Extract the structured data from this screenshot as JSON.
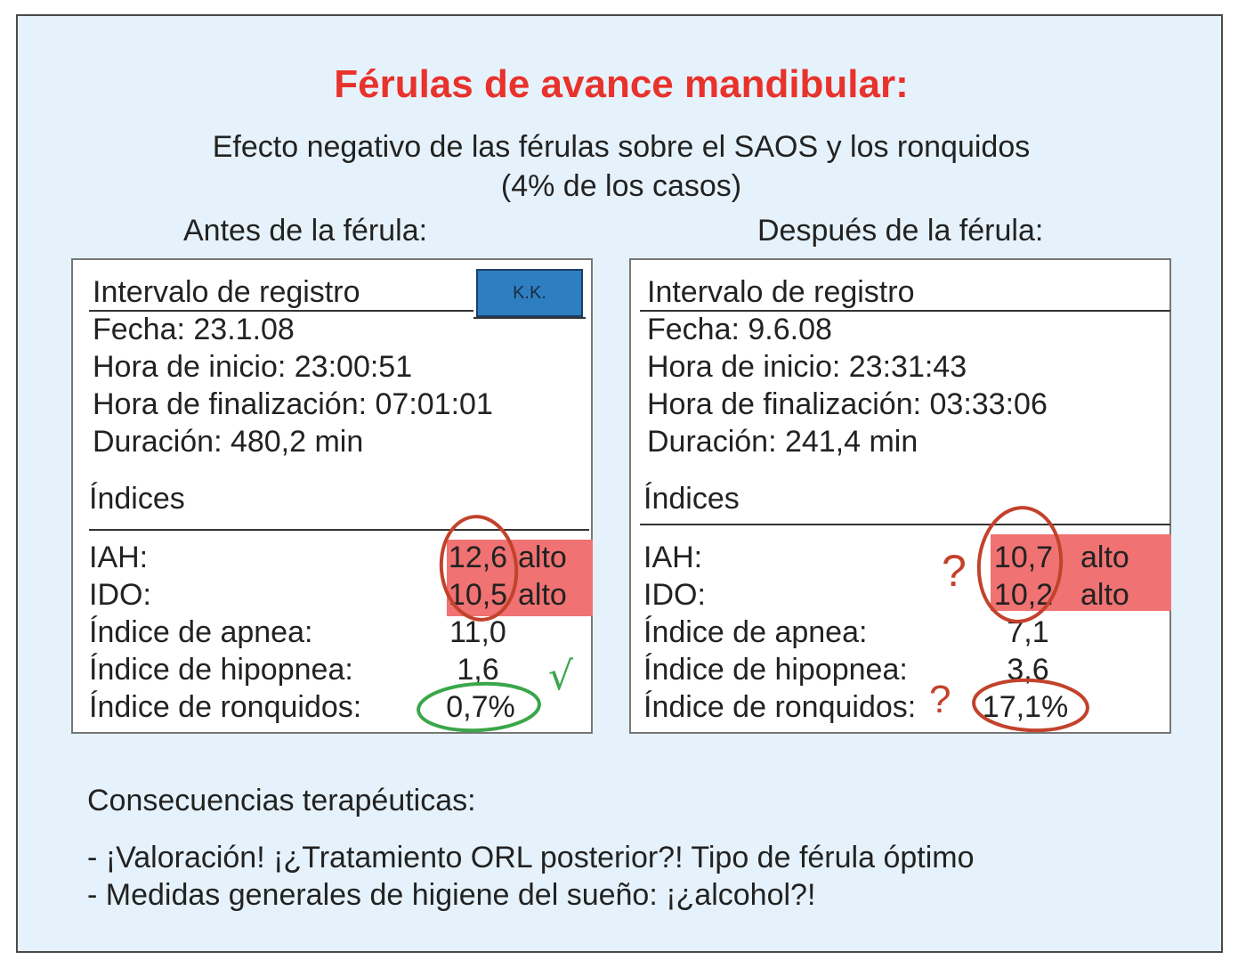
{
  "title": "Férulas de avance mandibular:",
  "subtitle": [
    "Efecto negativo de las férulas sobre el SAOS y los ronquidos",
    "(4% de los casos)"
  ],
  "headings": {
    "before": "Antes de la férula:",
    "after": "Después de la férula:"
  },
  "before": {
    "badge": "K.K.",
    "record_header": "Intervalo de registro",
    "fecha": "Fecha: 23.1.08",
    "inicio": "Hora de inicio: 23:00:51",
    "fin": "Hora de finalización: 07:01:01",
    "duracion": "Duración: 480,2 min",
    "indices_header": "Índices",
    "rows": [
      {
        "label": "IAH:",
        "value": "12,6",
        "flag": "alto"
      },
      {
        "label": "IDO:",
        "value": "10,5",
        "flag": "alto"
      },
      {
        "label": "Índice de apnea:",
        "value": "11,0",
        "flag": ""
      },
      {
        "label": "Índice de hipopnea:",
        "value": "1,6",
        "flag": ""
      },
      {
        "label": "Índice de ronquidos:",
        "value": "0,7%",
        "flag": ""
      }
    ]
  },
  "after": {
    "record_header": "Intervalo de registro",
    "fecha": "Fecha: 9.6.08",
    "inicio": "Hora de inicio: 23:31:43",
    "fin": "Hora de finalización: 03:33:06",
    "duracion": "Duración: 241,4 min",
    "indices_header": "Índices",
    "rows": [
      {
        "label": "IAH:",
        "value": "10,7",
        "flag": "alto"
      },
      {
        "label": "IDO:",
        "value": "10,2",
        "flag": "alto"
      },
      {
        "label": "Índice de apnea:",
        "value": "7,1",
        "flag": ""
      },
      {
        "label": "Índice de hipopnea:",
        "value": "3,6",
        "flag": ""
      },
      {
        "label": "Índice de ronquidos:",
        "value": "17,1%",
        "flag": ""
      }
    ]
  },
  "annotations": {
    "question_mark": "?",
    "check_mark": "√"
  },
  "consequences": {
    "header": "Consecuencias terapéuticas:",
    "items": [
      "- ¡Valoración! ¡¿Tratamiento ORL posterior?! Tipo de férula óptimo",
      "- Medidas generales de higiene del sueño: ¡¿alcohol?!"
    ]
  },
  "colors": {
    "title": "#e8322c",
    "highlight": "#f07272",
    "badge": "#2e7fc2",
    "circle_red": "#c2422c",
    "circle_green": "#3aa64a",
    "frame_bg": "#e6f2fb"
  }
}
